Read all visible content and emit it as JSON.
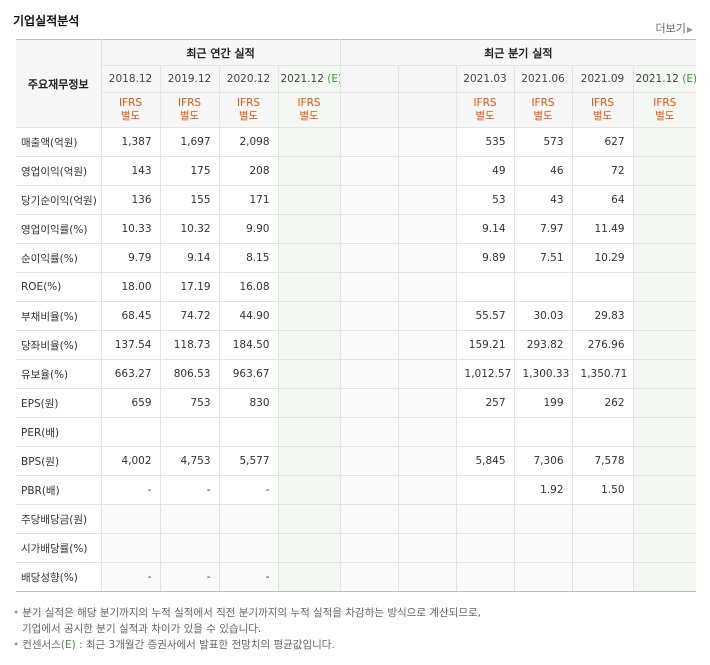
{
  "section_title": "기업실적분석",
  "more_link": "더보기",
  "header": {
    "corner": "주요재무정보",
    "annual_group": "최근 연간 실적",
    "quarter_group": "최근 분기 실적",
    "annual_dates": [
      "2018.12",
      "2019.12",
      "2020.12",
      "2021.12"
    ],
    "annual_est_flag": "(E)",
    "quarter_dates": [
      "",
      "",
      "2021.03",
      "2021.06",
      "2021.09",
      "2021.12"
    ],
    "quarter_est_flag": "(E)",
    "ifrs_line1": "IFRS",
    "ifrs_line2": "별도"
  },
  "rows": [
    {
      "label": "매출액(억원)",
      "annual": [
        "1,387",
        "1,697",
        "2,098",
        ""
      ],
      "quarter": [
        "",
        "",
        "535",
        "573",
        "627",
        ""
      ]
    },
    {
      "label": "영업이익(억원)",
      "annual": [
        "143",
        "175",
        "208",
        ""
      ],
      "quarter": [
        "",
        "",
        "49",
        "46",
        "72",
        ""
      ]
    },
    {
      "label": "당기순이익(억원)",
      "annual": [
        "136",
        "155",
        "171",
        ""
      ],
      "quarter": [
        "",
        "",
        "53",
        "43",
        "64",
        ""
      ]
    },
    {
      "label": "영업이익률(%)",
      "annual": [
        "10.33",
        "10.32",
        "9.90",
        ""
      ],
      "quarter": [
        "",
        "",
        "9.14",
        "7.97",
        "11.49",
        ""
      ]
    },
    {
      "label": "순이익률(%)",
      "annual": [
        "9.79",
        "9.14",
        "8.15",
        ""
      ],
      "quarter": [
        "",
        "",
        "9.89",
        "7.51",
        "10.29",
        ""
      ]
    },
    {
      "label": "ROE(%)",
      "annual": [
        "18.00",
        "17.19",
        "16.08",
        ""
      ],
      "quarter": [
        "",
        "",
        "",
        "",
        "",
        ""
      ]
    },
    {
      "label": "부채비율(%)",
      "annual": [
        "68.45",
        "74.72",
        "44.90",
        ""
      ],
      "quarter": [
        "",
        "",
        "55.57",
        "30.03",
        "29.83",
        ""
      ]
    },
    {
      "label": "당좌비율(%)",
      "annual": [
        "137.54",
        "118.73",
        "184.50",
        ""
      ],
      "quarter": [
        "",
        "",
        "159.21",
        "293.82",
        "276.96",
        ""
      ]
    },
    {
      "label": "유보율(%)",
      "annual": [
        "663.27",
        "806.53",
        "963.67",
        ""
      ],
      "quarter": [
        "",
        "",
        "1,012.57",
        "1,300.33",
        "1,350.71",
        ""
      ]
    },
    {
      "label": "EPS(원)",
      "annual": [
        "659",
        "753",
        "830",
        ""
      ],
      "quarter": [
        "",
        "",
        "257",
        "199",
        "262",
        ""
      ]
    },
    {
      "label": "PER(배)",
      "annual": [
        "",
        "",
        "",
        ""
      ],
      "quarter": [
        "",
        "",
        "",
        "",
        "",
        ""
      ]
    },
    {
      "label": "BPS(원)",
      "annual": [
        "4,002",
        "4,753",
        "5,577",
        ""
      ],
      "quarter": [
        "",
        "",
        "5,845",
        "7,306",
        "7,578",
        ""
      ]
    },
    {
      "label": "PBR(배)",
      "annual": [
        "-",
        "-",
        "-",
        ""
      ],
      "quarter": [
        "",
        "",
        "",
        "1.92",
        "1.50",
        ""
      ]
    },
    {
      "label": "주당배당금(원)",
      "annual": [
        "",
        "",
        "",
        ""
      ],
      "quarter": [
        "",
        "",
        "",
        "",
        "",
        ""
      ]
    },
    {
      "label": "시가배당률(%)",
      "annual": [
        "",
        "",
        "",
        ""
      ],
      "quarter": [
        "",
        "",
        "",
        "",
        "",
        ""
      ]
    },
    {
      "label": "배당성향(%)",
      "annual": [
        "-",
        "-",
        "-",
        ""
      ],
      "quarter": [
        "",
        "",
        "",
        "",
        "",
        ""
      ]
    }
  ],
  "notes": {
    "line1": "분기 실적은 해당 분기까지의 누적 실적에서 직전 분기까지의 누적 실적을 차감하는 방식으로 계산되므로,",
    "line2": "기업에서 공시한 분기 실적과 차이가 있을 수 있습니다.",
    "line3_prefix": "컨센서스",
    "line3_flag": "(E)",
    "line3_suffix": ": 최근 3개월간 증권사에서 발표한 전망치의 평균값입니다."
  }
}
